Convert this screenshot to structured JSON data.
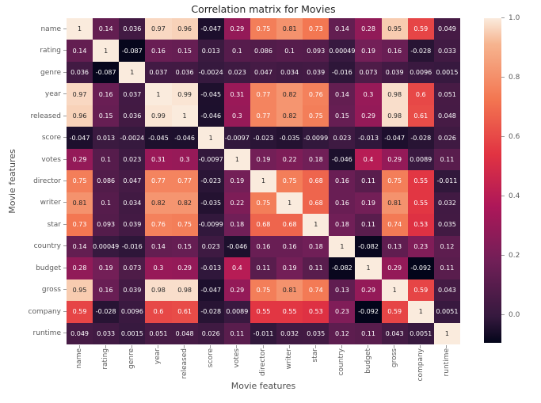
{
  "chart_data": {
    "type": "heatmap",
    "title": "Correlation matrix for Movies",
    "xlabel": "Movie features",
    "ylabel": "Movie features",
    "features": [
      "name",
      "rating",
      "genre",
      "year",
      "released",
      "score",
      "votes",
      "director",
      "writer",
      "star",
      "country",
      "budget",
      "gross",
      "company",
      "runtime"
    ],
    "matrix": [
      [
        "1",
        "0.14",
        "0.036",
        "0.97",
        "0.96",
        "-0.047",
        "0.29",
        "0.75",
        "0.81",
        "0.73",
        "0.14",
        "0.28",
        "0.95",
        "0.59",
        "0.049"
      ],
      [
        "0.14",
        "1",
        "-0.087",
        "0.16",
        "0.15",
        "0.013",
        "0.1",
        "0.086",
        "0.1",
        "0.093",
        "0.00049",
        "0.19",
        "0.16",
        "-0.028",
        "0.033"
      ],
      [
        "0.036",
        "-0.087",
        "1",
        "0.037",
        "0.036",
        "-0.0024",
        "0.023",
        "0.047",
        "0.034",
        "0.039",
        "-0.016",
        "0.073",
        "0.039",
        "0.0096",
        "0.0015"
      ],
      [
        "0.97",
        "0.16",
        "0.037",
        "1",
        "0.99",
        "-0.045",
        "0.31",
        "0.77",
        "0.82",
        "0.76",
        "0.14",
        "0.3",
        "0.98",
        "0.6",
        "0.051"
      ],
      [
        "0.96",
        "0.15",
        "0.036",
        "0.99",
        "1",
        "-0.046",
        "0.3",
        "0.77",
        "0.82",
        "0.75",
        "0.15",
        "0.29",
        "0.98",
        "0.61",
        "0.048"
      ],
      [
        "-0.047",
        "0.013",
        "-0.0024",
        "-0.045",
        "-0.046",
        "1",
        "-0.0097",
        "-0.023",
        "-0.035",
        "-0.0099",
        "0.023",
        "-0.013",
        "-0.047",
        "-0.028",
        "0.026"
      ],
      [
        "0.29",
        "0.1",
        "0.023",
        "0.31",
        "0.3",
        "-0.0097",
        "1",
        "0.19",
        "0.22",
        "0.18",
        "-0.046",
        "0.4",
        "0.29",
        "0.0089",
        "0.11"
      ],
      [
        "0.75",
        "0.086",
        "0.047",
        "0.77",
        "0.77",
        "-0.023",
        "0.19",
        "1",
        "0.75",
        "0.68",
        "0.16",
        "0.11",
        "0.75",
        "0.55",
        "-0.011"
      ],
      [
        "0.81",
        "0.1",
        "0.034",
        "0.82",
        "0.82",
        "-0.035",
        "0.22",
        "0.75",
        "1",
        "0.68",
        "0.16",
        "0.19",
        "0.81",
        "0.55",
        "0.032"
      ],
      [
        "0.73",
        "0.093",
        "0.039",
        "0.76",
        "0.75",
        "-0.0099",
        "0.18",
        "0.68",
        "0.68",
        "1",
        "0.18",
        "0.11",
        "0.74",
        "0.53",
        "0.035"
      ],
      [
        "0.14",
        "0.00049",
        "-0.016",
        "0.14",
        "0.15",
        "0.023",
        "-0.046",
        "0.16",
        "0.16",
        "0.18",
        "1",
        "-0.082",
        "0.13",
        "0.23",
        "0.12"
      ],
      [
        "0.28",
        "0.19",
        "0.073",
        "0.3",
        "0.29",
        "-0.013",
        "0.4",
        "0.11",
        "0.19",
        "0.11",
        "-0.082",
        "1",
        "0.29",
        "-0.092",
        "0.11"
      ],
      [
        "0.95",
        "0.16",
        "0.039",
        "0.98",
        "0.98",
        "-0.047",
        "0.29",
        "0.75",
        "0.81",
        "0.74",
        "0.13",
        "0.29",
        "1",
        "0.59",
        "0.043"
      ],
      [
        "0.59",
        "-0.028",
        "0.0096",
        "0.6",
        "0.61",
        "-0.028",
        "0.0089",
        "0.55",
        "0.55",
        "0.53",
        "0.23",
        "-0.092",
        "0.59",
        "1",
        "0.0051"
      ],
      [
        "0.049",
        "0.033",
        "0.0015",
        "0.051",
        "0.048",
        "0.026",
        "0.11",
        "-0.011",
        "0.032",
        "0.035",
        "0.12",
        "0.11",
        "0.043",
        "0.0051",
        "1"
      ]
    ],
    "vmin": -0.092,
    "vmax": 1.0,
    "colorbar_ticks": [
      "1.0",
      "0.8",
      "0.6",
      "0.4",
      "0.2",
      "0.0"
    ],
    "colormap": "rocket",
    "colormap_stops": [
      [
        0.0,
        "#03051a"
      ],
      [
        0.08,
        "#35193e"
      ],
      [
        0.25,
        "#701f57"
      ],
      [
        0.42,
        "#ad1759"
      ],
      [
        0.58,
        "#e13342"
      ],
      [
        0.75,
        "#f37651"
      ],
      [
        0.92,
        "#f6b48f"
      ],
      [
        1.0,
        "#faebdd"
      ]
    ],
    "legend_position": "right",
    "grid": false
  },
  "colors": {
    "background": "#ffffff",
    "title_text": "#262626",
    "tick_label_text": "#5c5c5c",
    "axis_label_text": "#4d4d4d",
    "annotation_dark": "#262626",
    "annotation_light": "#ffffff"
  }
}
